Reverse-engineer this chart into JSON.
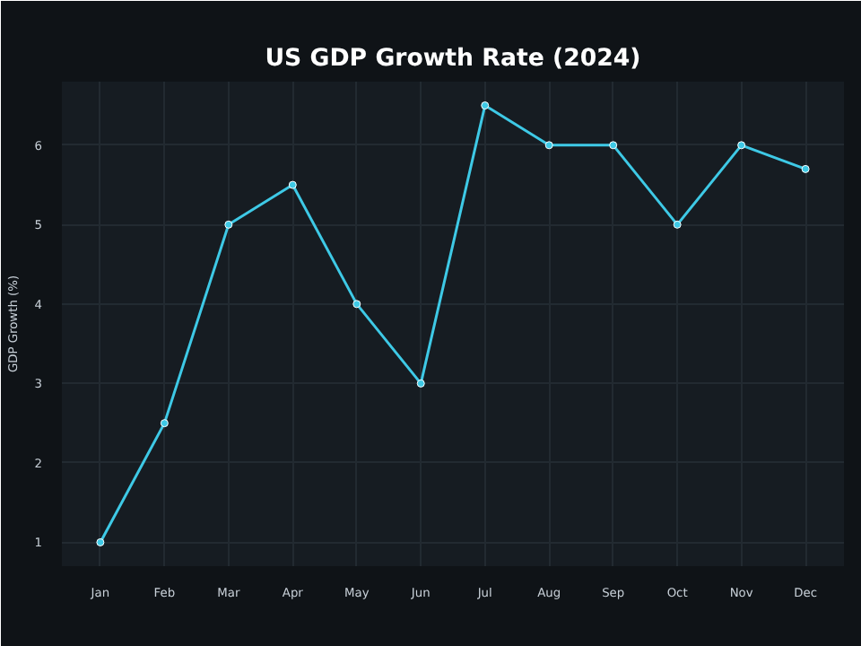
{
  "chart_data": {
    "type": "line",
    "title": "US GDP Growth Rate (2024)",
    "ylabel": "GDP Growth (%)",
    "categories": [
      "Jan",
      "Feb",
      "Mar",
      "Apr",
      "May",
      "Jun",
      "Jul",
      "Aug",
      "Sep",
      "Oct",
      "Nov",
      "Dec"
    ],
    "series": [
      {
        "color": "#3ec9e6",
        "values": [
          1,
          2.5,
          5,
          5.5,
          4,
          3,
          6.5,
          6,
          6,
          5,
          6,
          5.7
        ]
      }
    ],
    "ylim": [
      0.7,
      6.8
    ],
    "yticks": [
      1,
      2,
      3,
      4,
      5,
      6
    ],
    "grid": true,
    "marker": "circle",
    "line_style": "solid"
  }
}
